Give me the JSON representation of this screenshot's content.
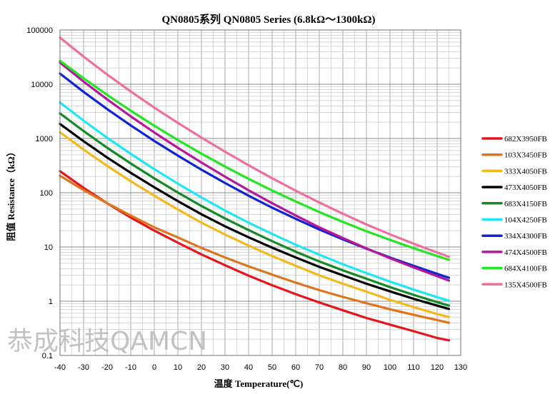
{
  "chart_data": {
    "type": "line",
    "title": "QN0805系列  QN0805 Series (6.8kΩ～1300kΩ)",
    "xlabel": "温度 Temperature(℃)",
    "ylabel": "阻值 Resistance（kΩ）",
    "xlim": [
      -40,
      130
    ],
    "ylim": [
      0.1,
      100000
    ],
    "yscale": "log",
    "grid": true,
    "legend_position": "right",
    "x_ticks": [
      "-40",
      "-30",
      "-20",
      "-10",
      "0",
      "10",
      "20",
      "30",
      "40",
      "50",
      "60",
      "70",
      "80",
      "90",
      "100",
      "110",
      "120",
      "130"
    ],
    "y_ticks": [
      "100000",
      "10000",
      "1000",
      "100",
      "10",
      "1",
      "0.1"
    ],
    "x": [
      -40,
      -30,
      -20,
      -10,
      0,
      10,
      20,
      30,
      40,
      50,
      60,
      70,
      80,
      90,
      100,
      110,
      120,
      125
    ],
    "series": [
      {
        "name": "682X3950FB",
        "color": "#e8141b",
        "values": [
          250,
          123,
          64,
          35,
          20,
          12,
          7.3,
          4.6,
          2.96,
          1.97,
          1.35,
          0.95,
          0.68,
          0.49,
          0.37,
          0.28,
          0.21,
          0.19
        ]
      },
      {
        "name": "103X3450FB",
        "color": "#e0741c",
        "values": [
          205,
          112,
          64,
          38,
          23,
          15,
          9.6,
          6.4,
          4.4,
          3.1,
          2.2,
          1.6,
          1.2,
          0.92,
          0.71,
          0.56,
          0.45,
          0.4
        ]
      },
      {
        "name": "333X4050FB",
        "color": "#f5b81b",
        "values": [
          1300,
          623,
          312,
          163,
          88,
          49,
          28,
          17,
          10.6,
          6.8,
          4.5,
          3.0,
          2.1,
          1.5,
          1.06,
          0.78,
          0.58,
          0.51
        ]
      },
      {
        "name": "473X4050FB",
        "color": "#000000",
        "values": [
          1850,
          890,
          445,
          233,
          126,
          70,
          40,
          24,
          15.1,
          9.7,
          6.4,
          4.3,
          3.0,
          2.1,
          1.52,
          1.11,
          0.83,
          0.72
        ]
      },
      {
        "name": "683X4150FB",
        "color": "#138a26",
        "values": [
          2900,
          1370,
          674,
          346,
          184,
          101,
          57,
          33.5,
          20.5,
          12.8,
          8.2,
          5.4,
          3.7,
          2.6,
          1.82,
          1.31,
          0.96,
          0.83
        ]
      },
      {
        "name": "104X4250FB",
        "color": "#1fe6f5",
        "values": [
          4600,
          2130,
          1030,
          521,
          272,
          147,
          82,
          47,
          28,
          17.4,
          11.0,
          7.2,
          4.8,
          3.3,
          2.3,
          1.64,
          1.19,
          1.02
        ]
      },
      {
        "name": "334X4300FB",
        "color": "#1123d6",
        "values": [
          15700,
          7230,
          3480,
          1740,
          900,
          483,
          266,
          151,
          88,
          53,
          33,
          21,
          13.8,
          9.3,
          6.4,
          4.5,
          3.2,
          2.7
        ]
      },
      {
        "name": "474X4500FB",
        "color": "#b51898",
        "values": [
          25000,
          11200,
          5260,
          2560,
          1290,
          673,
          360,
          198,
          111,
          64,
          38,
          23,
          14.6,
          9.4,
          6.2,
          4.2,
          2.9,
          2.4
        ]
      },
      {
        "name": "684X4100FB",
        "color": "#22e622",
        "values": [
          27000,
          12900,
          6360,
          3250,
          1720,
          936,
          526,
          304,
          180,
          110,
          69,
          44,
          29,
          19.5,
          13.5,
          9.5,
          6.8,
          5.8
        ]
      },
      {
        "name": "135X4500FB",
        "color": "#f06e9e",
        "values": [
          72000,
          32300,
          15100,
          7360,
          3700,
          1940,
          1040,
          571,
          321,
          185,
          109,
          66,
          41,
          26,
          17.1,
          11.5,
          7.9,
          6.6
        ]
      }
    ]
  },
  "watermark": "恭成科技QAMCN"
}
